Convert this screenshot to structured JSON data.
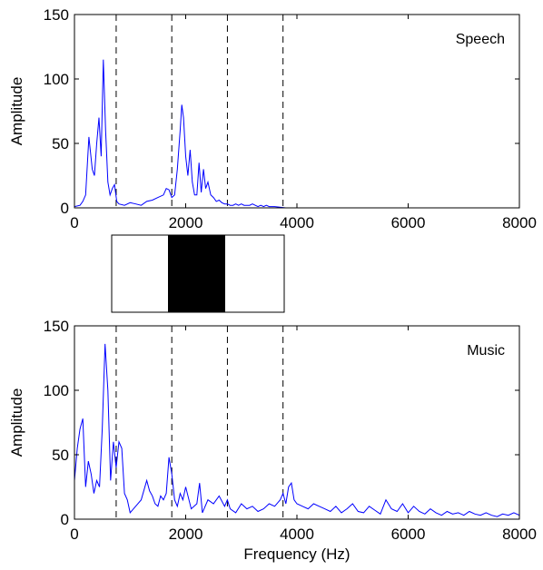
{
  "chart_data": [
    {
      "type": "line",
      "label": "Speech",
      "ylabel": "Amplitude",
      "xlabel": "",
      "xlim": [
        0,
        8000
      ],
      "ylim": [
        0,
        150
      ],
      "xticks": [
        0,
        2000,
        4000,
        6000,
        8000
      ],
      "yticks": [
        0,
        50,
        100,
        150
      ],
      "band_edges": [
        750,
        1750,
        2750,
        3750
      ],
      "series": [
        {
          "color": "#0000ff",
          "x": [
            0,
            100,
            150,
            200,
            260,
            320,
            360,
            400,
            440,
            480,
            520,
            560,
            600,
            640,
            680,
            720,
            760,
            800,
            900,
            1000,
            1100,
            1200,
            1300,
            1400,
            1500,
            1600,
            1650,
            1700,
            1750,
            1800,
            1850,
            1900,
            1930,
            1960,
            2000,
            2040,
            2080,
            2120,
            2160,
            2200,
            2240,
            2280,
            2320,
            2360,
            2400,
            2450,
            2500,
            2550,
            2600,
            2650,
            2700,
            2750,
            2800,
            2850,
            2900,
            2950,
            3000,
            3050,
            3100,
            3150,
            3200,
            3250,
            3300,
            3350,
            3400,
            3450,
            3500,
            3600,
            3800,
            4000,
            5000,
            6000,
            7000,
            8000
          ],
          "y": [
            1,
            2,
            5,
            10,
            55,
            30,
            25,
            50,
            70,
            40,
            115,
            60,
            20,
            10,
            15,
            18,
            5,
            3,
            2,
            4,
            3,
            2,
            5,
            6,
            8,
            10,
            15,
            14,
            8,
            10,
            30,
            60,
            80,
            70,
            40,
            25,
            45,
            20,
            10,
            10,
            35,
            12,
            30,
            15,
            20,
            10,
            8,
            5,
            6,
            4,
            3,
            3,
            2,
            2,
            3,
            2,
            3,
            2,
            2,
            2,
            3,
            2,
            1,
            2,
            1,
            2,
            1,
            1,
            0,
            0,
            0,
            0,
            0,
            0
          ]
        }
      ]
    },
    {
      "type": "line",
      "label": "Music",
      "ylabel": "Amplitude",
      "xlabel": "Frequency (Hz)",
      "xlim": [
        0,
        8000
      ],
      "ylim": [
        0,
        150
      ],
      "xticks": [
        0,
        2000,
        4000,
        6000,
        8000
      ],
      "yticks": [
        0,
        50,
        100,
        150
      ],
      "band_edges": [
        750,
        1750,
        2750,
        3750
      ],
      "series": [
        {
          "color": "#0000ff",
          "x": [
            0,
            50,
            100,
            150,
            200,
            250,
            300,
            350,
            400,
            450,
            500,
            550,
            600,
            650,
            700,
            750,
            800,
            850,
            900,
            950,
            1000,
            1100,
            1200,
            1300,
            1350,
            1400,
            1450,
            1500,
            1550,
            1600,
            1650,
            1700,
            1750,
            1800,
            1850,
            1900,
            1950,
            2000,
            2100,
            2200,
            2250,
            2300,
            2400,
            2500,
            2600,
            2700,
            2750,
            2800,
            2900,
            3000,
            3100,
            3200,
            3300,
            3400,
            3500,
            3600,
            3700,
            3750,
            3800,
            3850,
            3900,
            3950,
            4000,
            4100,
            4200,
            4300,
            4400,
            4500,
            4600,
            4700,
            4800,
            4900,
            5000,
            5100,
            5200,
            5300,
            5400,
            5500,
            5600,
            5700,
            5800,
            5900,
            6000,
            6100,
            6200,
            6300,
            6400,
            6500,
            6600,
            6700,
            6800,
            6900,
            7000,
            7100,
            7200,
            7300,
            7400,
            7500,
            7600,
            7700,
            7800,
            7900,
            8000
          ],
          "y": [
            30,
            55,
            70,
            78,
            25,
            45,
            35,
            20,
            30,
            25,
            70,
            136,
            100,
            30,
            60,
            40,
            60,
            55,
            20,
            15,
            5,
            10,
            15,
            30,
            22,
            18,
            12,
            10,
            18,
            15,
            20,
            48,
            35,
            15,
            10,
            20,
            15,
            25,
            8,
            12,
            28,
            5,
            15,
            12,
            18,
            10,
            15,
            8,
            5,
            12,
            8,
            10,
            6,
            8,
            12,
            10,
            15,
            20,
            12,
            25,
            28,
            15,
            12,
            10,
            8,
            12,
            10,
            8,
            6,
            10,
            5,
            8,
            12,
            6,
            5,
            10,
            7,
            4,
            15,
            8,
            6,
            12,
            5,
            10,
            6,
            4,
            8,
            5,
            3,
            6,
            4,
            5,
            3,
            6,
            4,
            3,
            5,
            3,
            2,
            4,
            3,
            5,
            3
          ]
        }
      ]
    }
  ]
}
